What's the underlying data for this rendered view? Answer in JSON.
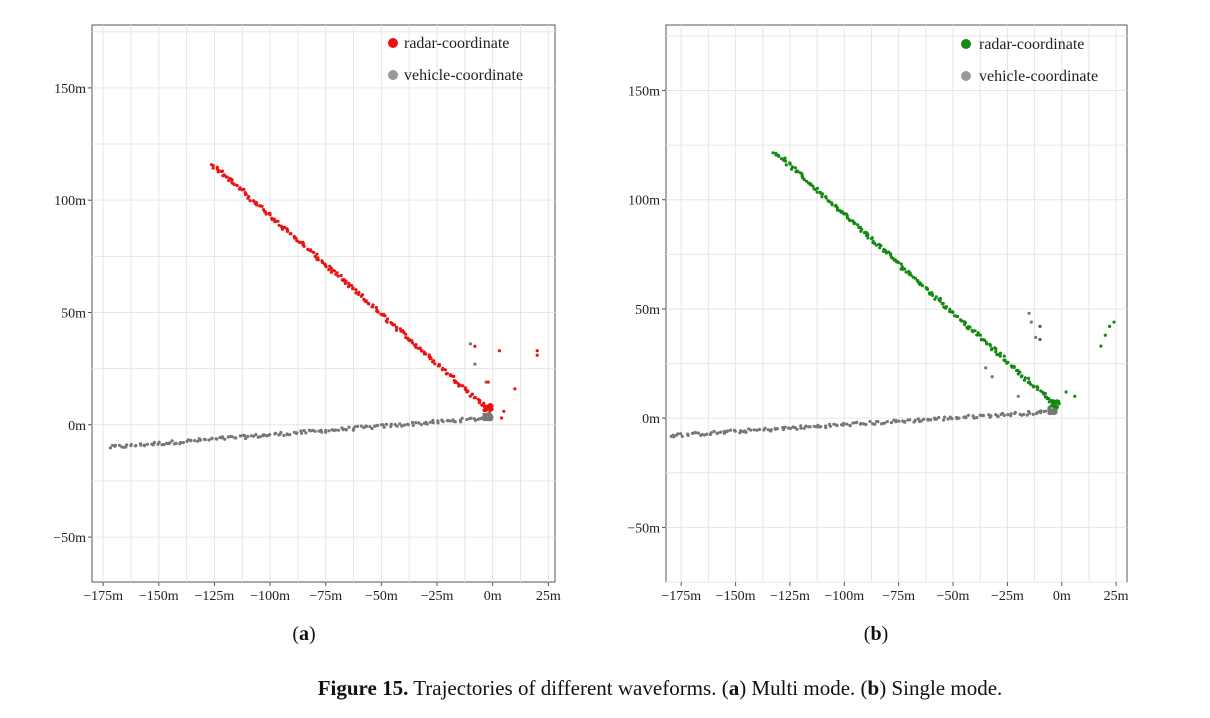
{
  "caption": {
    "label": "Figure 15.",
    "text_1": " Trajectories of different waveforms. (",
    "a": "a",
    "text_2": ") Multi mode. (",
    "b": "b",
    "text_3": ") Single mode."
  },
  "chart_data": [
    {
      "type": "scatter",
      "panel_label": "a",
      "xlim": [
        -180,
        28
      ],
      "ylim": [
        -70,
        178
      ],
      "x_ticks": [
        -175,
        -150,
        -125,
        -100,
        -75,
        -50,
        -25,
        0,
        25
      ],
      "x_tick_labels": [
        "−175m",
        "−150m",
        "−125m",
        "−100m",
        "−75m",
        "−50m",
        "−25m",
        "0m",
        "25m"
      ],
      "y_ticks": [
        -50,
        0,
        50,
        100,
        150
      ],
      "y_tick_labels": [
        "−50m",
        "0m",
        "50m",
        "100m",
        "150m"
      ],
      "grid": true,
      "legend": "top-right",
      "series": [
        {
          "name": "radar-coordinate",
          "color": "#ee1111",
          "segments": [
            [
              -126,
              116,
              -2,
              7
            ]
          ],
          "extras": [
            [
              -8,
              35
            ],
            [
              3,
              33
            ],
            [
              20,
              33
            ],
            [
              20,
              31
            ],
            [
              10,
              16
            ],
            [
              -2,
              19
            ],
            [
              4,
              3
            ],
            [
              5,
              6
            ]
          ]
        },
        {
          "name": "vehicle-coordinate",
          "color": "#777777",
          "segments": [
            [
              -172,
              -10,
              -2,
              3
            ]
          ],
          "extras": [
            [
              -10,
              36
            ],
            [
              -3,
              19
            ],
            [
              -8,
              27
            ]
          ]
        }
      ]
    },
    {
      "type": "scatter",
      "panel_label": "b",
      "xlim": [
        -182,
        30
      ],
      "ylim": [
        -75,
        180
      ],
      "x_ticks": [
        -175,
        -150,
        -125,
        -100,
        -75,
        -50,
        -25,
        0,
        25
      ],
      "x_tick_labels": [
        "−175m",
        "−150m",
        "−125m",
        "−100m",
        "−75m",
        "−50m",
        "−25m",
        "0m",
        "25m"
      ],
      "y_ticks": [
        -50,
        0,
        50,
        100,
        150
      ],
      "y_tick_labels": [
        "−50m",
        "0m",
        "50m",
        "100m",
        "150m"
      ],
      "grid": true,
      "legend": "top-right",
      "series": [
        {
          "name": "radar-coordinate",
          "color": "#138a13",
          "segments": [
            [
              -132,
              122,
              -3,
              6
            ]
          ],
          "extras": [
            [
              6,
              10
            ],
            [
              2,
              12
            ],
            [
              18,
              33
            ],
            [
              20,
              38
            ],
            [
              22,
              42
            ],
            [
              24,
              44
            ],
            [
              -10,
              42
            ],
            [
              -10,
              36
            ]
          ]
        },
        {
          "name": "vehicle-coordinate",
          "color": "#777777",
          "segments": [
            [
              -180,
              -8,
              -4,
              3
            ]
          ],
          "extras": [
            [
              -15,
              48
            ],
            [
              -14,
              44
            ],
            [
              -12,
              37
            ],
            [
              -35,
              23
            ],
            [
              -32,
              19
            ],
            [
              -20,
              10
            ]
          ]
        }
      ]
    }
  ]
}
